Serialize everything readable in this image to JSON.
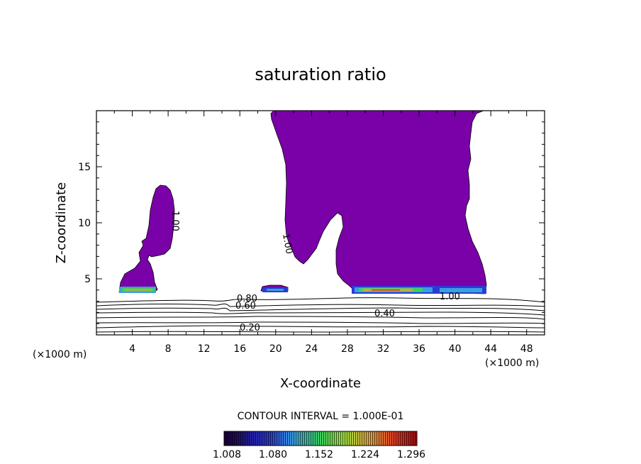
{
  "chart_data": {
    "type": "contour",
    "title": "saturation ratio",
    "xlabel": "X-coordinate",
    "ylabel": "Z-coordinate",
    "x_unit": "(×1000 m)",
    "y_unit": "(×1000 m)",
    "xlim": [
      0,
      50
    ],
    "ylim": [
      0,
      20
    ],
    "x_ticks": [
      4,
      8,
      12,
      16,
      20,
      24,
      28,
      32,
      36,
      40,
      44,
      48
    ],
    "y_ticks": [
      5,
      10,
      15
    ],
    "contour_interval_label": "CONTOUR INTERVAL = 1.000E-01",
    "contour_labels": [
      "1.00",
      "1.00",
      "1.00",
      "0.80",
      "0.60",
      "0.40",
      "0.20"
    ],
    "colorbar": {
      "labels": [
        "1.008",
        "1.080",
        "1.152",
        "1.224",
        "1.296"
      ],
      "colors": [
        "#1a0030",
        "#2a3bd6",
        "#3aa0e0",
        "#3fd060",
        "#a0e040",
        "#e0a040",
        "#e03020"
      ]
    },
    "supersaturated_color": "#7a00a8"
  }
}
